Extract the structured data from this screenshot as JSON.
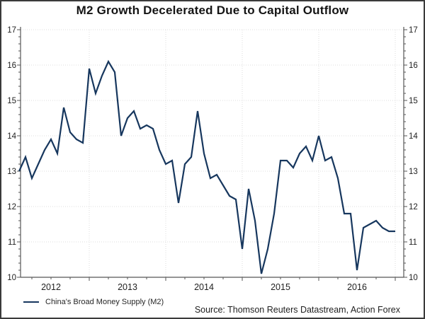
{
  "title": "M2 Growth Decelerated Due to Capital Outflow",
  "legend": {
    "label": "China's Broad Money Supply (M2)"
  },
  "source": "Source: Thomson Reuters Datastream, Action Forex",
  "colors": {
    "line": "#17375e",
    "grid": "#dcdcdc",
    "axis": "#565656",
    "text": "#1f1f1f"
  },
  "chart_data": {
    "type": "line",
    "title": "M2 Growth Decelerated Due to Capital Outflow",
    "xlabel": "",
    "ylabel": "",
    "ylim": [
      10,
      17
    ],
    "y_ticks": [
      10,
      11,
      12,
      13,
      14,
      15,
      16,
      17
    ],
    "y_tick_sides": "both",
    "y_minor_step": 0.2,
    "grid": true,
    "legend_position": "bottom-left",
    "frequency": "monthly",
    "x_year_labels": [
      "2012",
      "2013",
      "2014",
      "2015",
      "2016"
    ],
    "x": [
      "2012-02",
      "2012-03",
      "2012-04",
      "2012-05",
      "2012-06",
      "2012-07",
      "2012-08",
      "2012-09",
      "2012-10",
      "2012-11",
      "2012-12",
      "2013-01",
      "2013-02",
      "2013-03",
      "2013-04",
      "2013-05",
      "2013-06",
      "2013-07",
      "2013-08",
      "2013-09",
      "2013-10",
      "2013-11",
      "2013-12",
      "2014-01",
      "2014-02",
      "2014-03",
      "2014-04",
      "2014-05",
      "2014-06",
      "2014-07",
      "2014-08",
      "2014-09",
      "2014-10",
      "2014-11",
      "2014-12",
      "2015-01",
      "2015-02",
      "2015-03",
      "2015-04",
      "2015-05",
      "2015-06",
      "2015-07",
      "2015-08",
      "2015-09",
      "2015-10",
      "2015-11",
      "2015-12",
      "2016-01",
      "2016-02",
      "2016-03",
      "2016-04",
      "2016-05",
      "2016-06",
      "2016-07",
      "2016-08",
      "2016-09",
      "2016-10",
      "2016-11",
      "2016-12",
      "2017-01"
    ],
    "series": [
      {
        "name": "China's Broad Money Supply (M2)",
        "values": [
          13.0,
          13.4,
          12.8,
          13.2,
          13.6,
          13.9,
          13.5,
          14.8,
          14.1,
          13.9,
          13.8,
          15.9,
          15.2,
          15.7,
          16.1,
          15.8,
          14.0,
          14.5,
          14.7,
          14.2,
          14.3,
          14.2,
          13.6,
          13.2,
          13.3,
          12.1,
          13.2,
          13.4,
          14.7,
          13.5,
          12.8,
          12.9,
          12.6,
          12.3,
          12.2,
          10.8,
          12.5,
          11.6,
          10.1,
          10.8,
          11.8,
          13.3,
          13.3,
          13.1,
          13.5,
          13.7,
          13.3,
          14.0,
          13.3,
          13.4,
          12.8,
          11.8,
          11.8,
          10.2,
          11.4,
          11.5,
          11.6,
          11.4,
          11.3,
          11.3
        ]
      }
    ]
  }
}
